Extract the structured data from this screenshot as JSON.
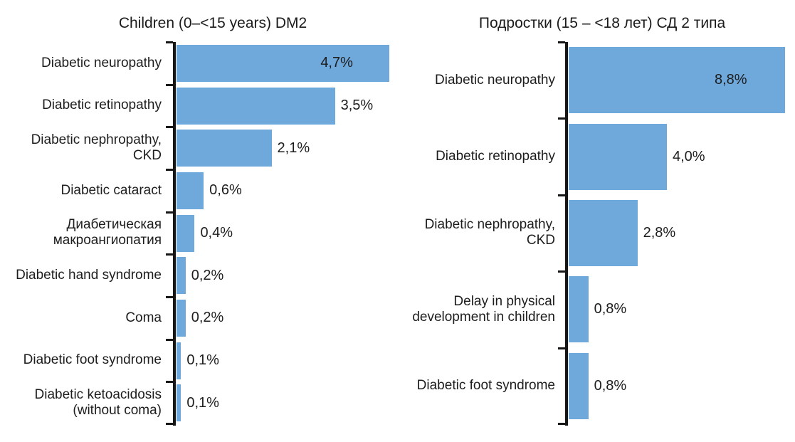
{
  "figure": {
    "background": "#ffffff",
    "bar_color": "#6FA9DC",
    "axis_color": "#161616",
    "text_color": "#1d1d1d"
  },
  "chart_data": [
    {
      "type": "bar",
      "orientation": "horizontal",
      "title": "Children (0–<15 years) DM2",
      "categories": [
        "Diabetic neuropathy",
        "Diabetic retinopathy",
        "Diabetic nephropathy,\nCKD",
        "Diabetic cataract",
        "Диабетическая\nмакроангиопатия",
        "Diabetic hand syndrome",
        "Coma",
        "Diabetic foot syndrome",
        "Diabetic ketoacidosis\n(without coma)"
      ],
      "values": [
        4.7,
        3.5,
        2.1,
        0.6,
        0.4,
        0.2,
        0.2,
        0.1,
        0.1
      ],
      "value_labels": [
        "4,7%",
        "3,5%",
        "2,1%",
        "0,6%",
        "0,4%",
        "0,2%",
        "0,2%",
        "0,1%",
        "0,1%"
      ],
      "value_suffix": "%",
      "decimal_separator": ",",
      "xlim": [
        0,
        4.9
      ],
      "grid": false,
      "legend": false,
      "value_label_placement": "inside end for maximum bar, outside end otherwise"
    },
    {
      "type": "bar",
      "orientation": "horizontal",
      "title": "Подростки (15 – <18 лет) СД 2 типа",
      "categories": [
        "Diabetic neuropathy",
        "Diabetic retinopathy",
        "Diabetic nephropathy,\nCKD",
        "Delay in physical\ndevelopment in children",
        "Diabetic foot syndrome"
      ],
      "values": [
        8.8,
        4.0,
        2.8,
        0.8,
        0.8
      ],
      "value_labels": [
        "8,8%",
        "4,0%",
        "2,8%",
        "0,8%",
        "0,8%"
      ],
      "value_suffix": "%",
      "decimal_separator": ",",
      "xlim": [
        0,
        9.2
      ],
      "grid": false,
      "legend": false,
      "value_label_placement": "inside end for maximum bar, outside end otherwise"
    }
  ]
}
